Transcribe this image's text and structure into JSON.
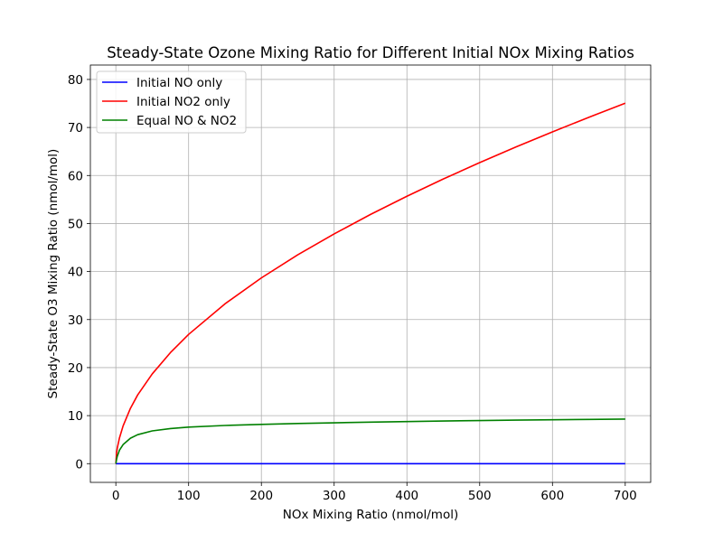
{
  "chart_data": {
    "type": "line",
    "title": "Steady-State Ozone Mixing Ratio for Different Initial NOx Mixing Ratios",
    "xlabel": "NOx Mixing Ratio (nmol/mol)",
    "ylabel": "Steady-State O3 Mixing Ratio (nmol/mol)",
    "xlim": [
      -35,
      735
    ],
    "ylim": [
      -3.9,
      83
    ],
    "xticks": [
      0,
      100,
      200,
      300,
      400,
      500,
      600,
      700
    ],
    "yticks": [
      0,
      10,
      20,
      30,
      40,
      50,
      60,
      70,
      80
    ],
    "grid": true,
    "legend_position": "upper-left",
    "x": [
      0,
      1,
      2,
      5,
      10,
      20,
      30,
      50,
      75,
      100,
      150,
      200,
      250,
      300,
      350,
      400,
      450,
      500,
      550,
      600,
      650,
      700
    ],
    "series": [
      {
        "name": "Initial NO only",
        "color": "#0000ff",
        "values": [
          0,
          0,
          0,
          0,
          0,
          0,
          0,
          0,
          0,
          0,
          0,
          0,
          0,
          0,
          0,
          0,
          0,
          0,
          0,
          0,
          0,
          0
        ]
      },
      {
        "name": "Initial NO2 only",
        "color": "#ff0000",
        "values": [
          0,
          2.23,
          3.26,
          5.37,
          7.87,
          11.51,
          14.31,
          18.68,
          23.12,
          26.91,
          33.28,
          38.68,
          43.48,
          47.84,
          51.89,
          55.68,
          59.27,
          62.68,
          65.95,
          69.09,
          72.12,
          75.05
        ]
      },
      {
        "name": "Equal NO & NO2",
        "color": "#008000",
        "values": [
          0,
          0.9,
          1.54,
          2.81,
          3.97,
          5.29,
          6.03,
          6.82,
          7.31,
          7.6,
          7.95,
          8.17,
          8.36,
          8.51,
          8.65,
          8.77,
          8.88,
          8.97,
          9.06,
          9.14,
          9.21,
          9.27
        ]
      }
    ]
  }
}
